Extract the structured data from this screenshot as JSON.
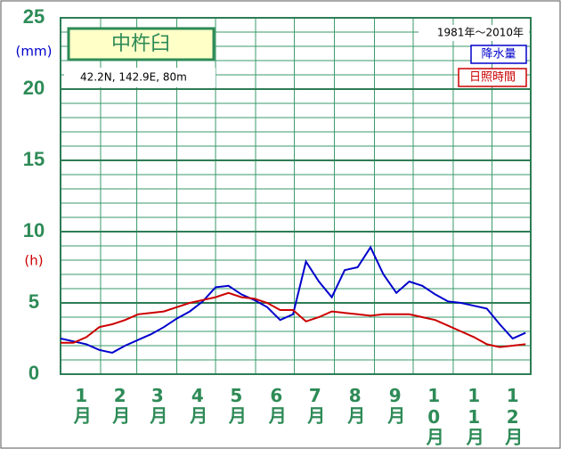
{
  "chart_data": {
    "type": "line",
    "title": "中杵臼",
    "subtitle": "42.2N,  142.9E,  80m",
    "period": "1981年〜2010年",
    "y_units": [
      {
        "label": "(mm)",
        "color": "#0000cc"
      },
      {
        "label": "(h)",
        "color": "#cc0000"
      }
    ],
    "x": [
      1,
      11,
      21,
      31,
      41,
      51,
      61,
      71,
      81,
      91,
      101,
      111,
      121,
      131,
      141,
      151,
      161,
      171,
      181,
      191,
      201,
      211,
      221,
      231,
      241,
      251,
      261,
      271,
      281,
      291,
      301,
      311,
      321,
      331,
      341,
      351,
      361
    ],
    "xlim": [
      1,
      365
    ],
    "xgrid": [
      1,
      32,
      60,
      91,
      121,
      152,
      182,
      213,
      244,
      274,
      305,
      335,
      365
    ],
    "xticks": [
      {
        "value": 16,
        "label": "1月"
      },
      {
        "value": 46,
        "label": "2月"
      },
      {
        "value": 75,
        "label": "3月"
      },
      {
        "value": 106,
        "label": "4月"
      },
      {
        "value": 136,
        "label": "5月"
      },
      {
        "value": 167,
        "label": "6月"
      },
      {
        "value": 197,
        "label": "7月"
      },
      {
        "value": 228,
        "label": "8月"
      },
      {
        "value": 259,
        "label": "9月"
      },
      {
        "value": 289,
        "label": "10月"
      },
      {
        "value": 320,
        "label": "11月"
      },
      {
        "value": 350,
        "label": "12月"
      }
    ],
    "ylim": [
      0,
      25
    ],
    "yticks": [
      0,
      5,
      10,
      15,
      20,
      25
    ],
    "ygrid": [
      0,
      1,
      2,
      3,
      4,
      5,
      6,
      7,
      8,
      9,
      10,
      11,
      12,
      13,
      14,
      15,
      16,
      17,
      18,
      19,
      20,
      21,
      22,
      23,
      24,
      25
    ],
    "series": [
      {
        "name": "降水量",
        "color": "#0000cc",
        "values": [
          2.5,
          2.3,
          2.1,
          1.7,
          1.5,
          2.0,
          2.4,
          2.8,
          3.3,
          3.9,
          4.4,
          5.1,
          6.1,
          6.2,
          5.6,
          5.2,
          4.7,
          3.8,
          4.2,
          7.9,
          6.5,
          5.4,
          7.3,
          7.5,
          8.9,
          7.0,
          5.7,
          6.5,
          6.2,
          5.6,
          5.1,
          5.0,
          4.8,
          4.6,
          3.5,
          2.5,
          2.9
        ]
      },
      {
        "name": "日照時間",
        "color": "#cc0000",
        "values": [
          2.2,
          2.2,
          2.6,
          3.3,
          3.5,
          3.8,
          4.2,
          4.3,
          4.4,
          4.7,
          5.0,
          5.2,
          5.4,
          5.7,
          5.4,
          5.3,
          5.0,
          4.5,
          4.5,
          3.7,
          4.0,
          4.4,
          4.3,
          4.2,
          4.1,
          4.2,
          4.2,
          4.2,
          4.0,
          3.8,
          3.4,
          3.0,
          2.6,
          2.1,
          1.9,
          2.0,
          2.1
        ]
      }
    ]
  }
}
